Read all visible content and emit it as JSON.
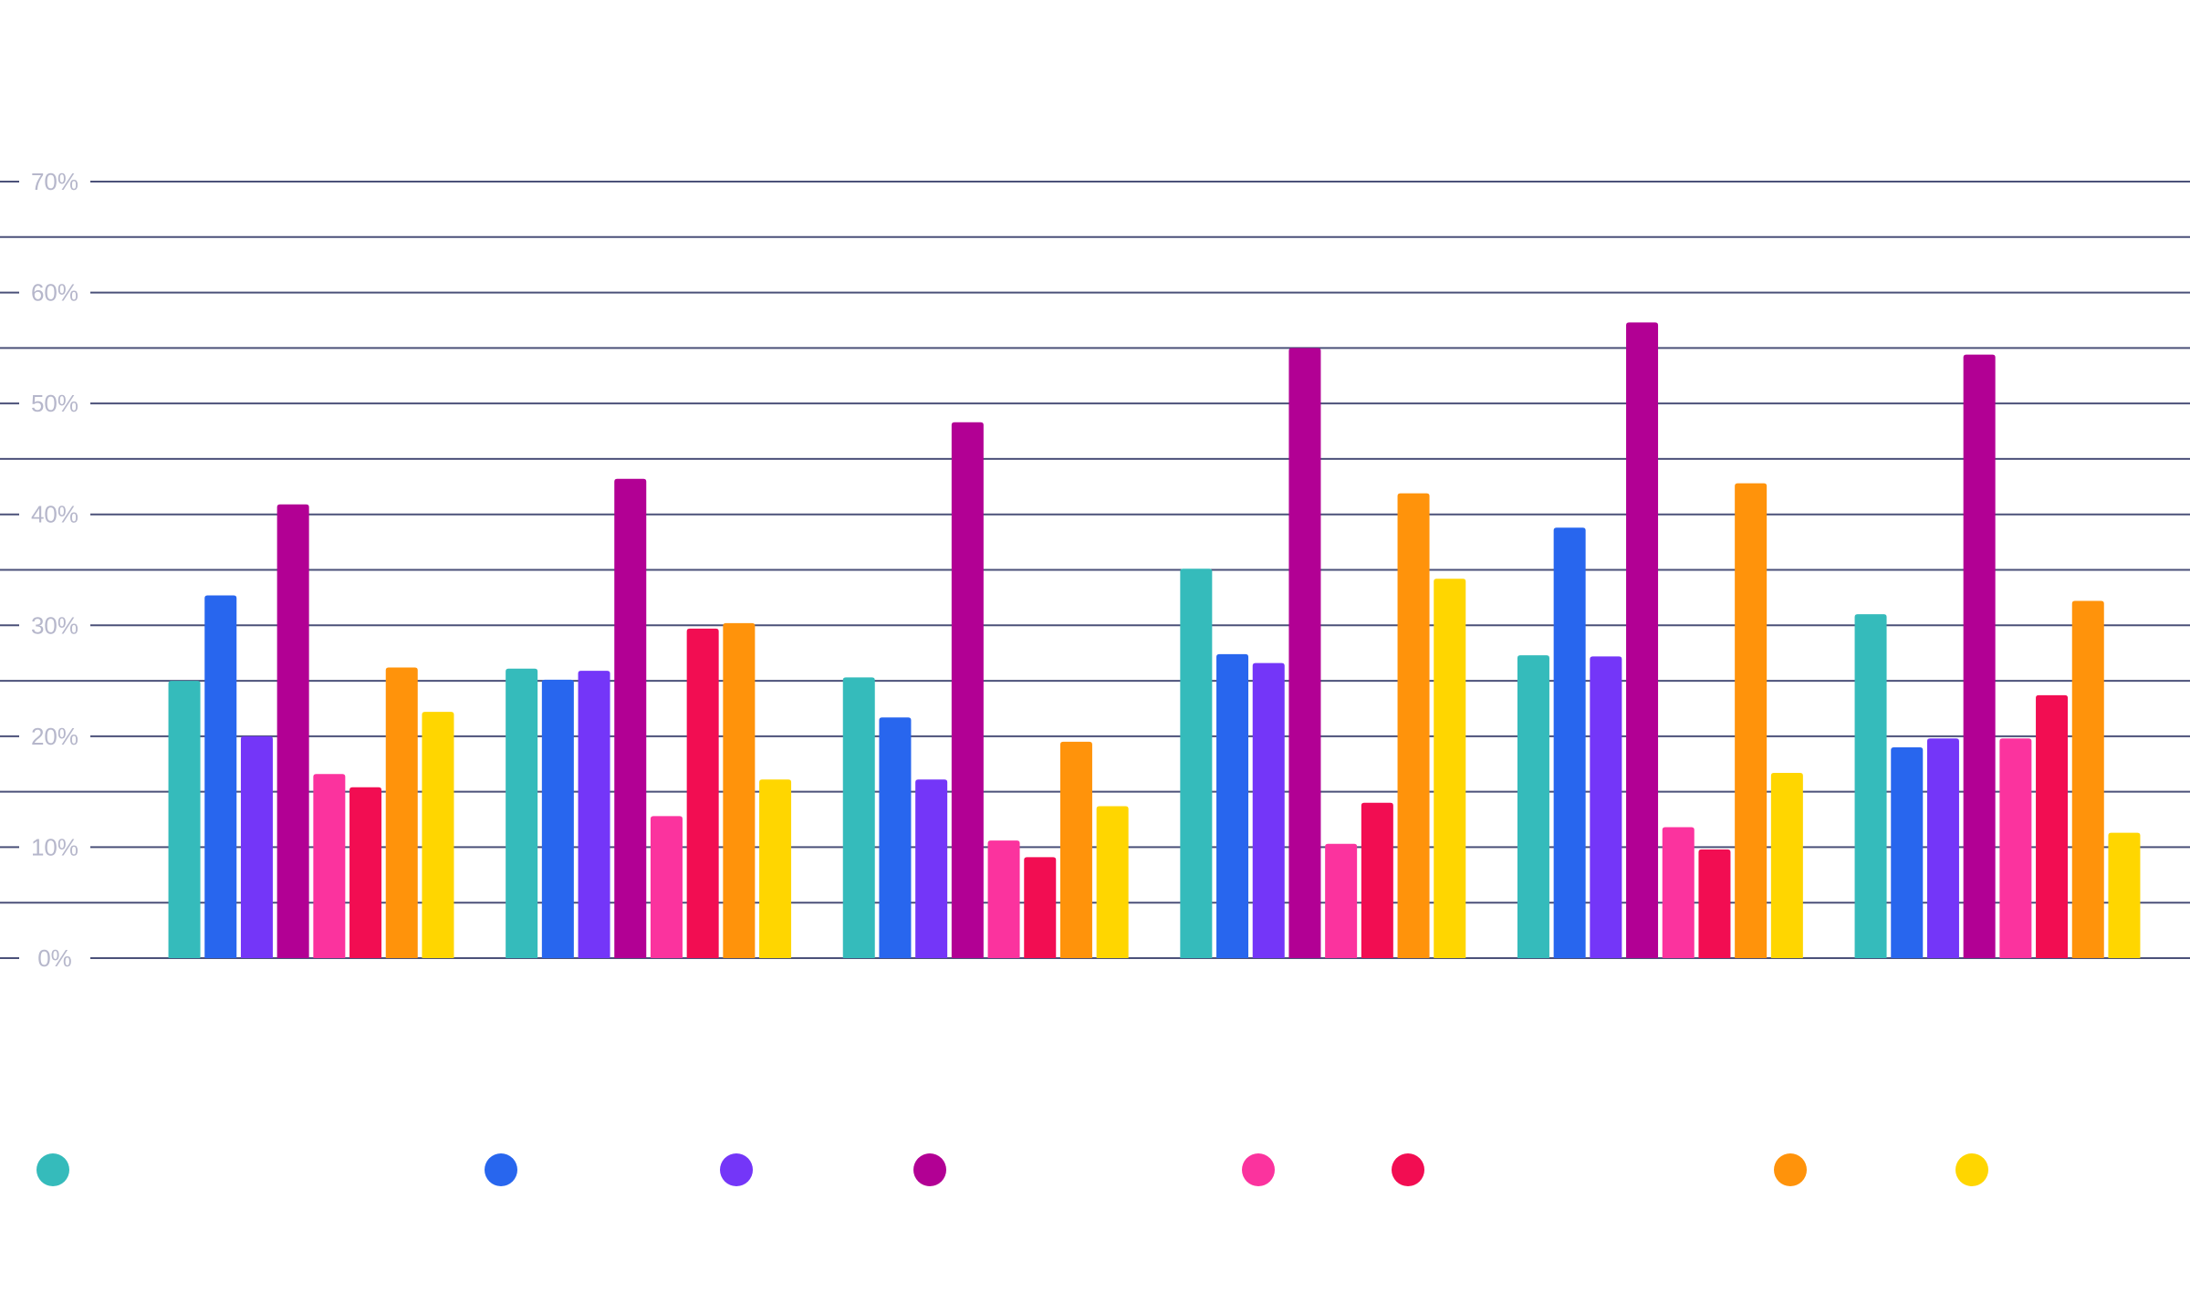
{
  "chart_data": {
    "type": "bar",
    "title": "",
    "xlabel": "",
    "ylabel": "",
    "ylim": [
      0,
      70
    ],
    "y_ticks": [
      "0%",
      "10%",
      "20%",
      "30%",
      "40%",
      "50%",
      "60%",
      "70%"
    ],
    "grid": true,
    "minor_grid_step": 5,
    "legend": "bottom",
    "categories": [
      "",
      "",
      "",
      "",
      "",
      ""
    ],
    "series": [
      {
        "color": "#35bbbb",
        "values": [
          25.0,
          26.1,
          25.3,
          35.1,
          27.3,
          31.0
        ]
      },
      {
        "color": "#2866ee",
        "values": [
          32.7,
          25.1,
          21.7,
          27.4,
          38.8,
          19.0
        ]
      },
      {
        "color": "#7436f8",
        "values": [
          20.0,
          25.9,
          16.1,
          26.6,
          27.2,
          19.8
        ]
      },
      {
        "color": "#b20094",
        "values": [
          40.9,
          43.2,
          48.3,
          55.0,
          57.3,
          54.4
        ]
      },
      {
        "color": "#fb339e",
        "values": [
          16.6,
          12.8,
          10.6,
          10.3,
          11.8,
          19.8
        ]
      },
      {
        "color": "#f20d52",
        "values": [
          15.4,
          29.7,
          9.1,
          14.0,
          9.8,
          23.7
        ]
      },
      {
        "color": "#ff930b",
        "values": [
          26.2,
          30.2,
          19.5,
          41.9,
          42.8,
          32.2
        ]
      },
      {
        "color": "#ffd600",
        "values": [
          22.2,
          16.1,
          13.7,
          34.2,
          16.7,
          11.3
        ]
      }
    ],
    "colors": {
      "grid": "#4b5179",
      "tick_label": "#b6b7cb"
    }
  }
}
